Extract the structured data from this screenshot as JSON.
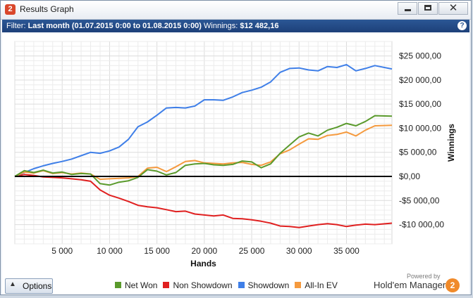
{
  "window": {
    "title": "Results Graph",
    "app_icon": "2",
    "icons": {
      "minimize": "minimize-icon",
      "maximize": "maximize-icon",
      "close": "close-icon"
    }
  },
  "filter": {
    "prefix": "Filter:",
    "range": "Last month (01.07.2015 0:00 to 01.08.2015 0:00)",
    "winnings_label": "Winnings:",
    "winnings_value": "$12 482,16",
    "help": "?"
  },
  "options": {
    "label": "Options",
    "arrow": "▲"
  },
  "brand": {
    "powered": "Powered by",
    "name": "Hold'em Manager",
    "icon": "2"
  },
  "chart_data": {
    "type": "line",
    "xlabel": "Hands",
    "ylabel": "Winnings",
    "xlim": [
      0,
      39800
    ],
    "ylim": [
      -14000,
      28000
    ],
    "x_ticks": [
      5000,
      10000,
      15000,
      20000,
      25000,
      30000,
      35000
    ],
    "x_tick_labels": [
      "5 000",
      "10 000",
      "15 000",
      "20 000",
      "25 000",
      "30 000",
      "35 000"
    ],
    "y_ticks": [
      25000,
      20000,
      15000,
      10000,
      5000,
      0,
      -5000,
      -10000
    ],
    "y_tick_labels": [
      "$25 000,00",
      "$20 000,00",
      "$15 000,00",
      "$10 000,00",
      "$5 000,00",
      "$0,00",
      "-$5 000,00",
      "-$10 000,00"
    ],
    "grid": true,
    "legend_position": "bottom",
    "x": [
      0,
      1000,
      2000,
      3000,
      4000,
      5000,
      6000,
      7000,
      8000,
      9000,
      10000,
      11000,
      12000,
      13000,
      14000,
      15000,
      16000,
      17000,
      18000,
      19000,
      20000,
      21000,
      22000,
      23000,
      24000,
      25000,
      26000,
      27000,
      28000,
      29000,
      30000,
      31000,
      32000,
      33000,
      34000,
      35000,
      36000,
      37000,
      38000,
      39800
    ],
    "series": [
      {
        "name": "Net Won",
        "color": "#5a9a2c",
        "values": [
          0,
          1200,
          800,
          1300,
          700,
          900,
          400,
          600,
          500,
          -1500,
          -1800,
          -1200,
          -900,
          -200,
          1400,
          1100,
          300,
          800,
          2300,
          2600,
          2700,
          2400,
          2300,
          2500,
          3200,
          3000,
          1800,
          2600,
          4800,
          6500,
          8200,
          9000,
          8400,
          9600,
          10200,
          11000,
          10500,
          11400,
          12600,
          12500
        ]
      },
      {
        "name": "Non Showdown",
        "color": "#e02020",
        "values": [
          0,
          400,
          200,
          -100,
          -200,
          -300,
          -500,
          -700,
          -1000,
          -2800,
          -3900,
          -4500,
          -5200,
          -6000,
          -6300,
          -6500,
          -6900,
          -7300,
          -7200,
          -7800,
          -8000,
          -8200,
          -8000,
          -8700,
          -8800,
          -9000,
          -9300,
          -9700,
          -10300,
          -10400,
          -10600,
          -10300,
          -10000,
          -9800,
          -10000,
          -10400,
          -10100,
          -9900,
          -10000,
          -9700
        ]
      },
      {
        "name": "Showdown",
        "color": "#3f7fe8",
        "values": [
          0,
          800,
          1600,
          2200,
          2700,
          3100,
          3600,
          4300,
          5000,
          4800,
          5300,
          6100,
          7700,
          10300,
          11300,
          12700,
          14200,
          14300,
          14200,
          14600,
          15900,
          15900,
          15800,
          16500,
          17400,
          17900,
          18500,
          19600,
          21600,
          22400,
          22500,
          22100,
          21900,
          22800,
          22600,
          23200,
          21900,
          22400,
          23000,
          22300
        ]
      },
      {
        "name": "All-In EV",
        "color": "#f59a3e",
        "values": [
          0,
          900,
          700,
          1200,
          600,
          800,
          500,
          700,
          500,
          -600,
          -500,
          -400,
          -300,
          0,
          1700,
          1900,
          1000,
          2000,
          3100,
          3300,
          2800,
          2700,
          2600,
          2800,
          2900,
          2500,
          2300,
          3000,
          4700,
          5500,
          6700,
          7800,
          7700,
          8500,
          8700,
          9200,
          8400,
          9600,
          10500,
          10600
        ]
      }
    ]
  }
}
